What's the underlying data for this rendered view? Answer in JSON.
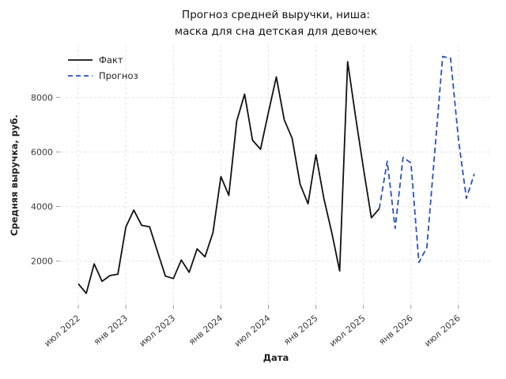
{
  "chart_data": {
    "type": "line",
    "title_lines": [
      "Прогноз средней выручки, ниша:",
      "маска для сна детская для девочек"
    ],
    "xlabel": "Дата",
    "ylabel": "Средняя выручка, руб.",
    "months": [
      "2022-07",
      "2022-08",
      "2022-09",
      "2022-10",
      "2022-11",
      "2022-12",
      "2023-01",
      "2023-02",
      "2023-03",
      "2023-04",
      "2023-05",
      "2023-06",
      "2023-07",
      "2023-08",
      "2023-09",
      "2023-10",
      "2023-11",
      "2023-12",
      "2024-01",
      "2024-02",
      "2024-03",
      "2024-04",
      "2024-05",
      "2024-06",
      "2024-07",
      "2024-08",
      "2024-09",
      "2024-10",
      "2024-11",
      "2024-12",
      "2025-01",
      "2025-02",
      "2025-03",
      "2025-04",
      "2025-05",
      "2025-06",
      "2025-07",
      "2025-08",
      "2025-09",
      "2025-10",
      "2025-11",
      "2025-12",
      "2026-01",
      "2026-02",
      "2026-03",
      "2026-04",
      "2026-05",
      "2026-06",
      "2026-07",
      "2026-08",
      "2026-09"
    ],
    "series": [
      {
        "name": "Факт",
        "style": "solid",
        "color": "#111111",
        "start_index": 0,
        "values": [
          1170,
          820,
          1900,
          1260,
          1470,
          1520,
          3250,
          3870,
          3310,
          3260,
          2350,
          1450,
          1360,
          2040,
          1590,
          2450,
          2160,
          3050,
          5100,
          4410,
          7130,
          8120,
          6430,
          6100,
          7450,
          8750,
          7180,
          6500,
          4820,
          4100,
          5900,
          4300,
          3050,
          1640,
          9310,
          7300,
          5400,
          3590,
          3920
        ]
      },
      {
        "name": "Прогноз",
        "style": "dashed",
        "color": "#2a52be",
        "start_index": 38,
        "values": [
          3920,
          5660,
          3200,
          5800,
          5600,
          1950,
          2500,
          6000,
          9500,
          9430,
          6450,
          4300,
          5200
        ]
      }
    ],
    "x_ticks": [
      {
        "index": 0,
        "label": "июл 2022"
      },
      {
        "index": 6,
        "label": "янв 2023"
      },
      {
        "index": 12,
        "label": "июл 2023"
      },
      {
        "index": 18,
        "label": "янв 2024"
      },
      {
        "index": 24,
        "label": "июл 2024"
      },
      {
        "index": 30,
        "label": "янв 2025"
      },
      {
        "index": 36,
        "label": "июл 2025"
      },
      {
        "index": 42,
        "label": "янв 2026"
      },
      {
        "index": 48,
        "label": "июл 2026"
      }
    ],
    "y_ticks": [
      2000,
      4000,
      6000,
      8000
    ],
    "ylim": [
      400,
      9920
    ],
    "xlim_index": [
      -2.2,
      52.0
    ],
    "grid": true,
    "legend_position": "upper-left",
    "colors": {
      "fact_line": "#111111",
      "forecast_line": "#2a52be",
      "grid_line": "#e2e2e2",
      "tick_mark": "#9a9a9a",
      "tick_text": "#3a3a3a",
      "title_text": "#111111"
    }
  }
}
